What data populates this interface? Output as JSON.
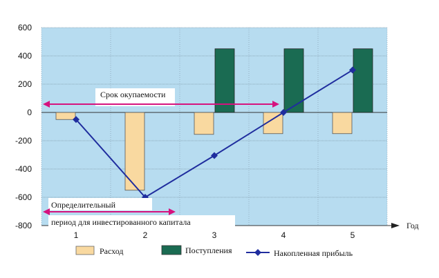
{
  "chart_data": {
    "type": "bar",
    "categories": [
      "1",
      "2",
      "3",
      "4",
      "5"
    ],
    "ylim": [
      -800,
      600
    ],
    "yticks": [
      600,
      400,
      200,
      0,
      -200,
      -400,
      -600,
      -800
    ],
    "xlabel": "Год",
    "grid": true,
    "legend_position": "bottom",
    "series": [
      {
        "name": "Расход",
        "type": "bar",
        "color": "#f9d9a0",
        "values": [
          -50,
          -550,
          -155,
          -150,
          -150
        ]
      },
      {
        "name": "Поступления",
        "type": "bar",
        "color": "#1a6b52",
        "values": [
          0,
          0,
          450,
          450,
          450
        ]
      },
      {
        "name": "Накопленная прибыль",
        "type": "line",
        "color": "#1f2d9e",
        "values": [
          -50,
          -600,
          -305,
          0,
          300
        ]
      }
    ],
    "annotations": {
      "payback": "Срок окупаемости",
      "period_line1": "Определительный",
      "period_line2": "период для инвестированного капитала"
    },
    "colors": {
      "plot_bg": "#b7dcf0",
      "arrow": "#d6127e"
    }
  }
}
